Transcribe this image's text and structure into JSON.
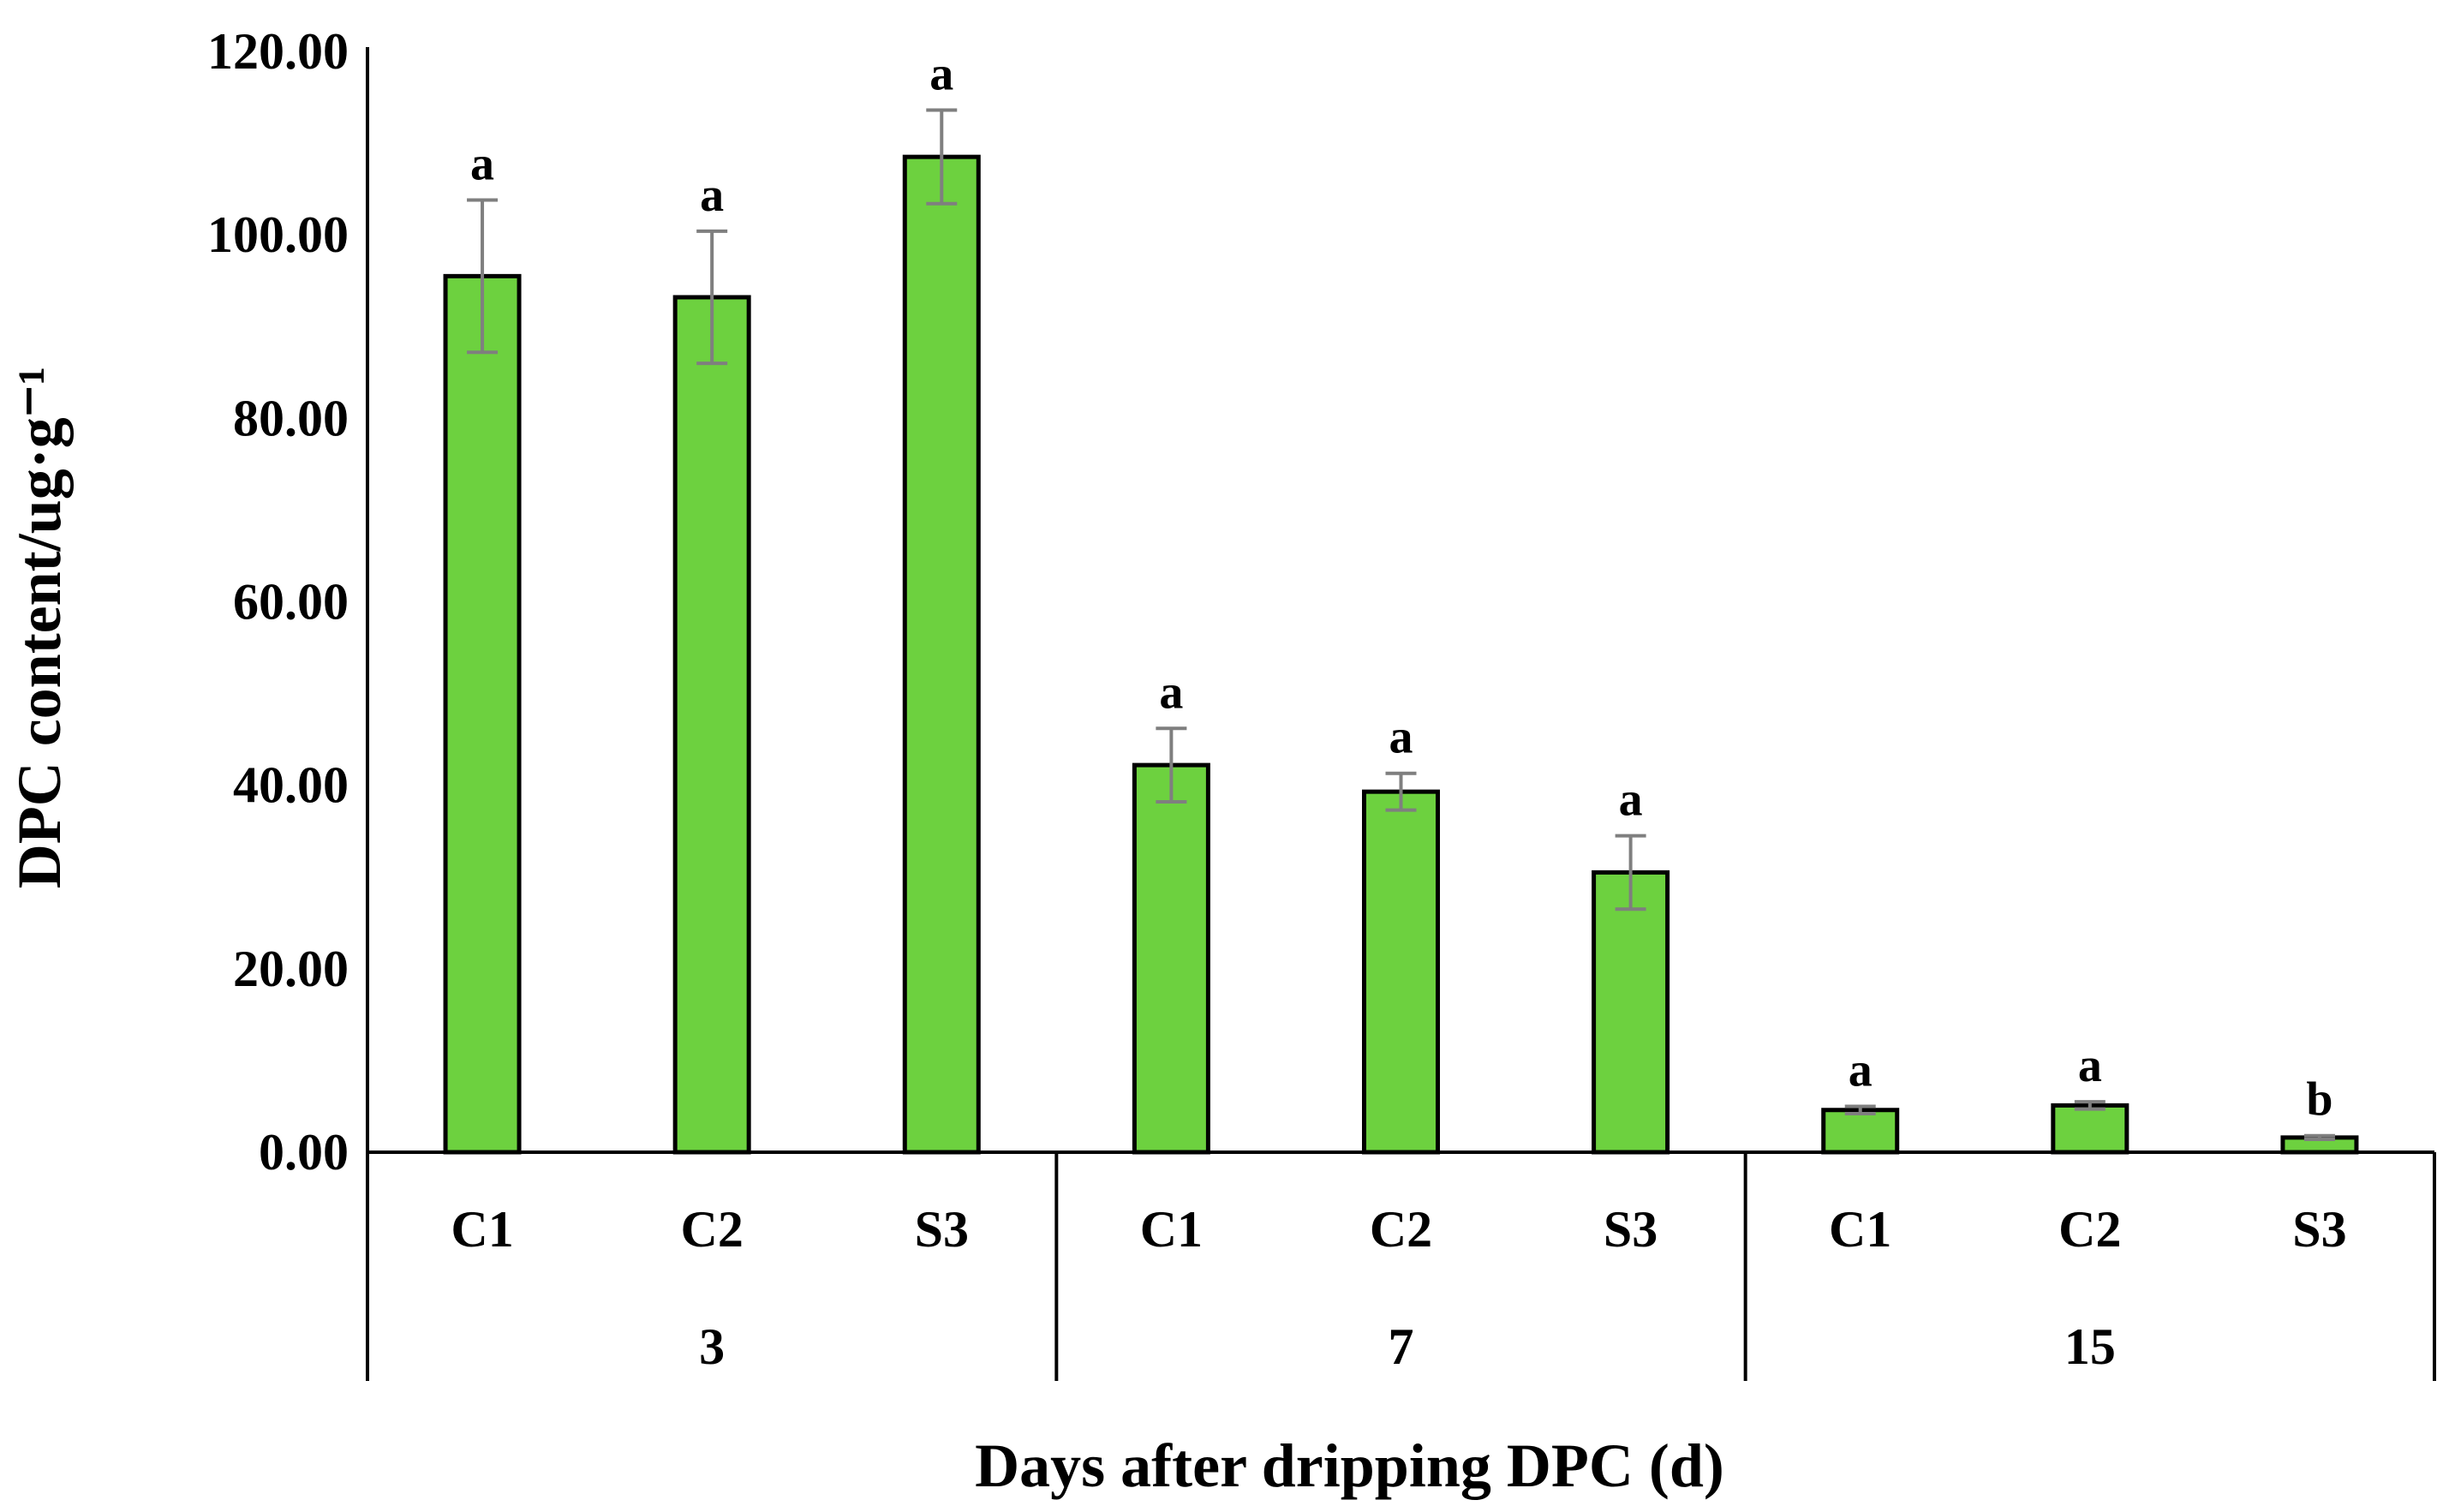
{
  "chart_data": {
    "type": "bar",
    "ylabel": "DPC content/ug·g⁻¹",
    "xlabel": "Days after dripping DPC (d)",
    "ylim": [
      0,
      120
    ],
    "yticks": [
      "0.00",
      "20.00",
      "40.00",
      "60.00",
      "80.00",
      "100.00",
      "120.00"
    ],
    "grid": false,
    "legend": "none",
    "colors": {
      "bar": "#6dd13f",
      "bar_edge": "#000000",
      "error": "#7f7f7f"
    },
    "groups": [
      {
        "day": "3",
        "bars": [
          {
            "label": "C1",
            "value": 95.5,
            "error": 8.3,
            "sig": "a"
          },
          {
            "label": "C2",
            "value": 93.2,
            "error": 7.2,
            "sig": "a"
          },
          {
            "label": "S3",
            "value": 108.5,
            "error": 5.1,
            "sig": "a"
          }
        ]
      },
      {
        "day": "7",
        "bars": [
          {
            "label": "C1",
            "value": 42.2,
            "error": 4.0,
            "sig": "a"
          },
          {
            "label": "C2",
            "value": 39.3,
            "error": 2.0,
            "sig": "a"
          },
          {
            "label": "S3",
            "value": 30.5,
            "error": 4.0,
            "sig": "a"
          }
        ]
      },
      {
        "day": "15",
        "bars": [
          {
            "label": "C1",
            "value": 4.6,
            "error": 0.4,
            "sig": "a"
          },
          {
            "label": "C2",
            "value": 5.1,
            "error": 0.4,
            "sig": "a"
          },
          {
            "label": "S3",
            "value": 1.6,
            "error": 0.2,
            "sig": "b"
          }
        ]
      }
    ]
  }
}
